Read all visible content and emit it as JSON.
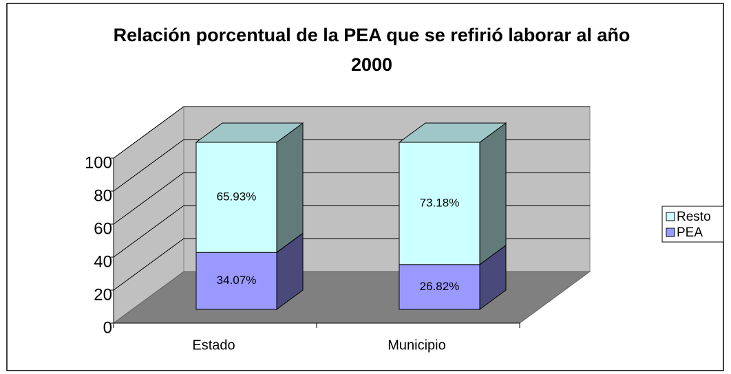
{
  "chart_data": {
    "type": "bar",
    "stacked": true,
    "three_d": true,
    "title": "Relación porcentual de la PEA que se refirió laborar al año 2000",
    "categories": [
      "Estado",
      "Municipio"
    ],
    "series": [
      {
        "name": "PEA",
        "color": "#9999ff",
        "values": [
          34.07,
          26.82
        ],
        "value_labels": [
          "34.07%",
          "26.82%"
        ]
      },
      {
        "name": "Resto",
        "color": "#ccffff",
        "values": [
          65.93,
          73.18
        ],
        "value_labels": [
          "65.93%",
          "73.18%"
        ]
      }
    ],
    "ylim": [
      0,
      100
    ],
    "yticks": [
      0,
      20,
      40,
      60,
      80,
      100
    ],
    "grid": true,
    "legend": "right"
  }
}
